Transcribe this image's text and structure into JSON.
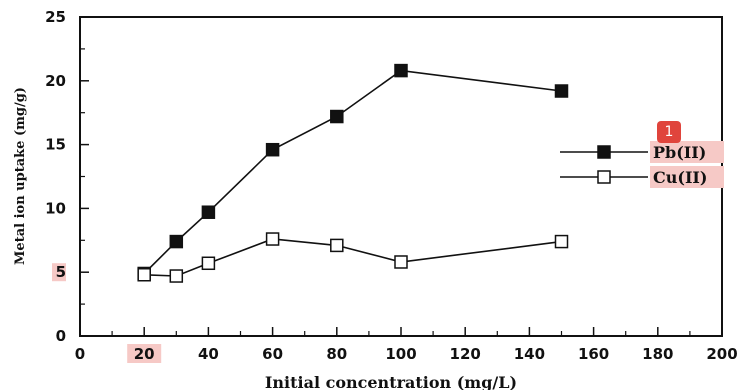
{
  "marker_badge": "1",
  "chart_data": {
    "type": "line",
    "xlabel": "Initial concentration  (mg/L)",
    "ylabel": "Metal ion uptake (mg/g)",
    "xlim": [
      0,
      200
    ],
    "ylim": [
      0,
      25
    ],
    "x_ticks": [
      0,
      20,
      40,
      60,
      80,
      100,
      120,
      140,
      160,
      180,
      200
    ],
    "y_ticks": [
      0,
      5,
      10,
      15,
      20,
      25
    ],
    "grid": false,
    "legend_position": "right",
    "highlight_color": "#f6c9c6",
    "series": [
      {
        "name": "Pb(II)",
        "marker": "filled-square",
        "x": [
          20,
          30,
          40,
          60,
          80,
          100,
          150
        ],
        "y": [
          4.9,
          7.4,
          9.7,
          14.6,
          17.2,
          20.8,
          19.2
        ]
      },
      {
        "name": "Cu(II)",
        "marker": "open-square",
        "x": [
          20,
          30,
          40,
          60,
          80,
          100,
          150
        ],
        "y": [
          4.8,
          4.7,
          5.7,
          7.6,
          7.1,
          5.8,
          7.4
        ]
      }
    ]
  }
}
